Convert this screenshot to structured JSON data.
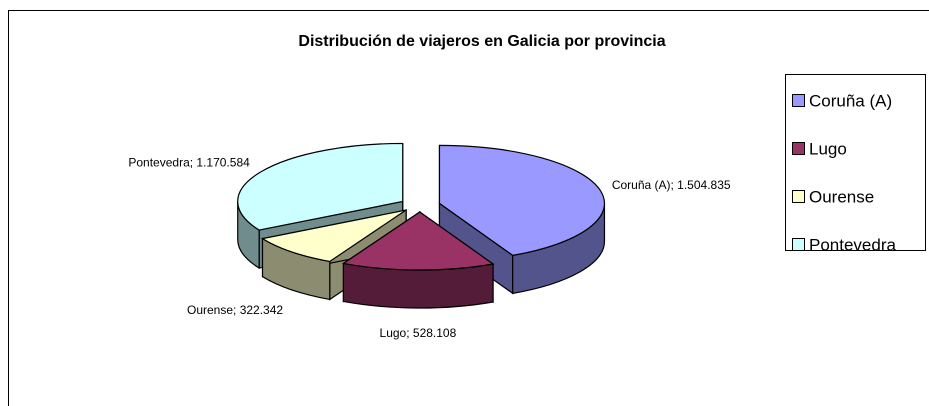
{
  "chart_data": {
    "type": "pie3d",
    "title": "Distribución de viajeros en Galicia por provincia",
    "categories": [
      "Coruña (A)",
      "Lugo",
      "Ourense",
      "Pontevedra"
    ],
    "values": [
      1504835,
      528108,
      322342,
      1170584
    ],
    "value_labels": [
      "Coruña (A); 1.504.835",
      "Lugo; 528.108",
      "Ourense; 322.342",
      "Pontevedra; 1.170.584"
    ],
    "colors": [
      "#9999ff",
      "#993366",
      "#ffffcc",
      "#ccffff"
    ],
    "legend": "right"
  }
}
